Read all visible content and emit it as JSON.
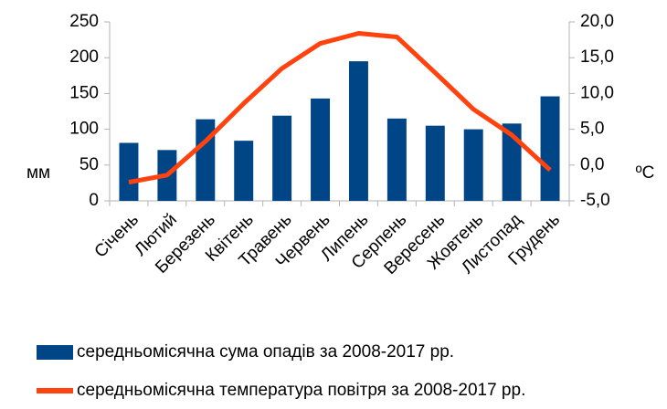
{
  "chart_data": {
    "type": "bar",
    "categories": [
      "Січень",
      "Лютий",
      "Березень",
      "Квітень",
      "Травень",
      "Червень",
      "Липень",
      "Серпень",
      "Вересень",
      "Жовтень",
      "Листопад",
      "Грудень"
    ],
    "series": [
      {
        "name": "середньомісячна сума опадів за 2008-2017 рр.",
        "type": "bar",
        "color": "#004586",
        "values": [
          81,
          71,
          114,
          84,
          119,
          143,
          195,
          115,
          105,
          100,
          108,
          146
        ]
      },
      {
        "name": "середньомісячна температура повітря за 2008-2017 рр.",
        "type": "line",
        "axis": "y2",
        "color": "#ff420e",
        "values": [
          -2.4,
          -1.4,
          3.3,
          8.6,
          13.5,
          17.0,
          18.4,
          17.9,
          12.9,
          7.8,
          4.2,
          -0.7
        ]
      }
    ],
    "ylabel": "мм",
    "y2label": "ºC",
    "ylim": [
      0,
      250
    ],
    "yticks": [
      0,
      50,
      100,
      150,
      200,
      250
    ],
    "y2lim": [
      -5,
      20
    ],
    "y2ticks": [
      {
        "value": -5,
        "label": "-5,0"
      },
      {
        "value": 0,
        "label": "0,0"
      },
      {
        "value": 5,
        "label": "5,0"
      },
      {
        "value": 10,
        "label": "10,0"
      },
      {
        "value": 15,
        "label": "15,0"
      },
      {
        "value": 20,
        "label": "20,0"
      }
    ],
    "legend": "bottom",
    "grid": false
  }
}
